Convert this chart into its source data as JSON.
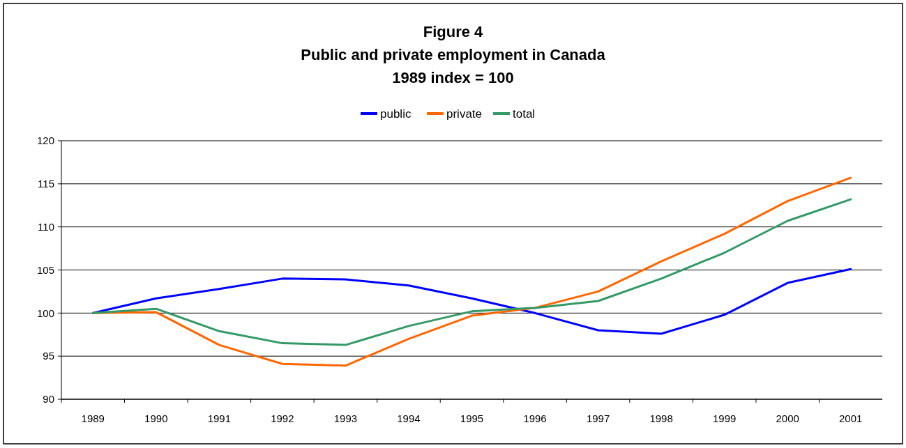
{
  "chart_data": {
    "type": "line",
    "title": "Figure 4\nPublic and private employment in Canada\n1989 index = 100",
    "categories": [
      "1989",
      "1990",
      "1991",
      "1992",
      "1993",
      "1994",
      "1995",
      "1996",
      "1997",
      "1998",
      "1999",
      "2000",
      "2001"
    ],
    "series": [
      {
        "name": "public",
        "color": "#0000ff",
        "values": [
          100,
          101.7,
          102.8,
          104.0,
          103.9,
          103.2,
          101.7,
          100.0,
          98.0,
          97.6,
          99.8,
          103.5,
          105.1
        ]
      },
      {
        "name": "private",
        "color": "#ff6600",
        "values": [
          100,
          100.1,
          96.3,
          94.1,
          93.9,
          97.0,
          99.7,
          100.6,
          102.5,
          106.0,
          109.2,
          113.0,
          115.7
        ]
      },
      {
        "name": "total",
        "color": "#339966",
        "values": [
          100,
          100.5,
          97.9,
          96.5,
          96.3,
          98.5,
          100.2,
          100.6,
          101.4,
          104.0,
          107.0,
          110.7,
          113.2
        ]
      }
    ],
    "ylim": [
      90,
      120
    ],
    "yticks": [
      90,
      95,
      100,
      105,
      110,
      115,
      120
    ],
    "grid": "y",
    "legend": "top",
    "marker": "none",
    "line_style": "solid"
  }
}
